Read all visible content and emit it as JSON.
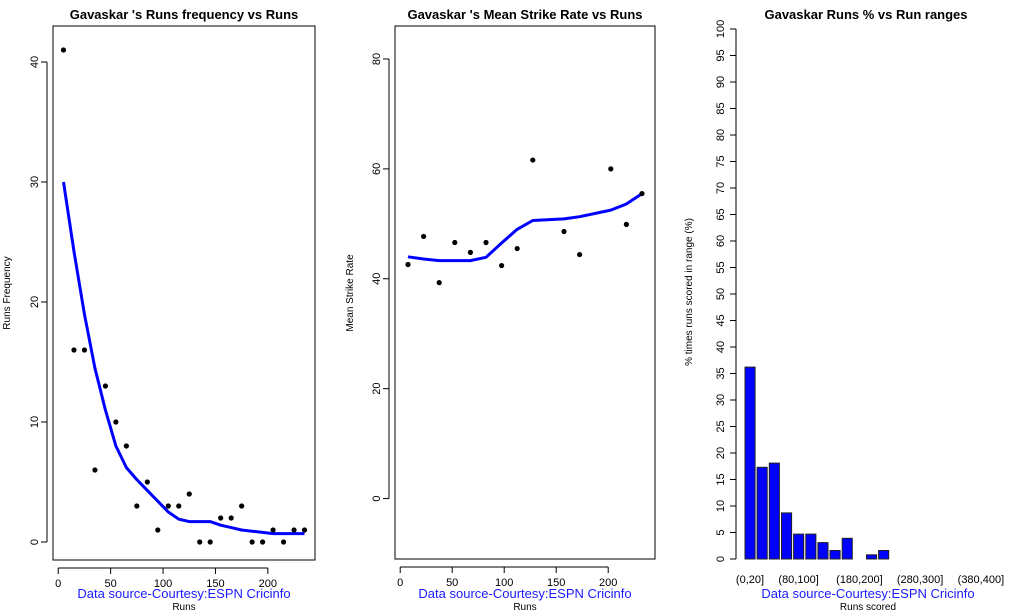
{
  "chart_data": [
    {
      "type": "scatter",
      "title": "Gavaskar 's  Runs frequency vs Runs",
      "xlabel": "Runs",
      "ylabel": "Runs Frequency",
      "caption": "Data source-Courtesy:ESPN Cricinfo",
      "xlim": [
        -5,
        245
      ],
      "ylim": [
        -1.5,
        43
      ],
      "x_ticks": [
        "0",
        "50",
        "100",
        "150",
        "200"
      ],
      "y_ticks": [
        "0",
        "10",
        "20",
        "30",
        "40"
      ],
      "series": [
        {
          "name": "frequency",
          "style": "points",
          "x": [
            5,
            15,
            25,
            35,
            45,
            55,
            65,
            75,
            85,
            95,
            105,
            115,
            125,
            135,
            145,
            155,
            165,
            175,
            185,
            195,
            205,
            215,
            225,
            235
          ],
          "y": [
            41,
            16,
            16,
            6,
            13,
            10,
            8,
            3,
            5,
            1,
            3,
            3,
            4,
            0,
            0,
            2,
            2,
            3,
            0,
            0,
            1,
            0,
            1,
            1
          ]
        },
        {
          "name": "lowess",
          "style": "line",
          "color": "#0000ff",
          "x": [
            5,
            15,
            25,
            35,
            45,
            55,
            65,
            75,
            85,
            95,
            105,
            115,
            125,
            135,
            145,
            155,
            165,
            175,
            185,
            195,
            205,
            215,
            225,
            235
          ],
          "y": [
            30,
            24.2,
            19,
            14.5,
            11,
            8,
            6.2,
            5.2,
            4.3,
            3.4,
            2.5,
            1.9,
            1.7,
            1.7,
            1.7,
            1.4,
            1.2,
            1.0,
            0.9,
            0.8,
            0.7,
            0.7,
            0.7,
            0.7
          ]
        }
      ]
    },
    {
      "type": "scatter",
      "title": "Gavaskar 's Mean Strike Rate vs Runs",
      "xlabel": "Runs",
      "ylabel": "Mean Strike Rate",
      "caption": "Data source-Courtesy:ESPN Cricinfo",
      "xlim": [
        -5,
        245
      ],
      "ylim": [
        -11,
        86
      ],
      "x_ticks": [
        "0",
        "50",
        "100",
        "150",
        "200"
      ],
      "y_ticks": [
        "0",
        "20",
        "40",
        "60",
        "80"
      ],
      "series": [
        {
          "name": "strike-rate",
          "style": "points",
          "x": [
            7.5,
            22.5,
            37.5,
            52.5,
            67.5,
            82.5,
            97.5,
            112.5,
            127.5,
            157.5,
            172.5,
            202.5,
            217.5,
            232.5
          ],
          "y": [
            42.6,
            47.7,
            39.3,
            46.6,
            44.8,
            46.6,
            42.4,
            45.5,
            61.6,
            48.6,
            44.4,
            60.0,
            49.9,
            55.5
          ]
        },
        {
          "name": "lowess",
          "style": "line",
          "color": "#0000ff",
          "x": [
            7.5,
            22.5,
            37.5,
            52.5,
            67.5,
            82.5,
            97.5,
            112.5,
            127.5,
            157.5,
            172.5,
            202.5,
            217.5,
            232.5
          ],
          "y": [
            44.0,
            43.6,
            43.3,
            43.3,
            43.3,
            43.9,
            46.5,
            49.0,
            50.6,
            50.9,
            51.3,
            52.5,
            53.6,
            55.5
          ]
        }
      ]
    },
    {
      "type": "bar",
      "title": "Gavaskar Runs %  vs Run ranges",
      "xlabel": "Runs scored",
      "ylabel": "% times runs scored in range (%)",
      "caption": "Data source-Courtesy:ESPN Cricinfo",
      "ylim": [
        0,
        100
      ],
      "bar_color": "#0000ff",
      "y_ticks": [
        "0",
        "5",
        "10",
        "15",
        "20",
        "25",
        "30",
        "35",
        "40",
        "45",
        "50",
        "55",
        "60",
        "65",
        "70",
        "75",
        "80",
        "85",
        "90",
        "95",
        "100"
      ],
      "categories": [
        "(0,20]",
        "(20,40]",
        "(40,60]",
        "(60,80]",
        "(80,100]",
        "(100,120]",
        "(120,140]",
        "(140,160]",
        "(160,180]",
        "(180,200]",
        "(200,220]",
        "(220,240]",
        "(240,260]",
        "(260,280]",
        "(280,300]",
        "(300,320]",
        "(320,340]",
        "(340,360]",
        "(360,380]",
        "(380,400]"
      ],
      "shown_category_labels": [
        "(0,20]",
        "(80,100]",
        "(180,200]",
        "(280,300]",
        "(380,400]"
      ],
      "values": [
        36.2,
        17.3,
        18.1,
        8.7,
        4.7,
        4.7,
        3.1,
        1.6,
        3.9,
        0,
        0.8,
        1.6,
        0,
        0,
        0,
        0,
        0,
        0,
        0,
        0
      ]
    }
  ]
}
